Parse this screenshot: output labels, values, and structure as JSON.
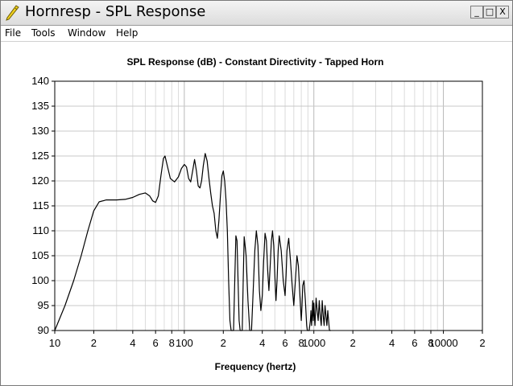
{
  "window": {
    "title": "Hornresp - SPL Response",
    "controls": {
      "minimize": "_",
      "maximize": "□",
      "close": "X"
    }
  },
  "menu": {
    "items": [
      {
        "label": "File"
      },
      {
        "label": "Tools"
      },
      {
        "label": "Window"
      },
      {
        "label": "Help"
      }
    ]
  },
  "chart_data": {
    "type": "line",
    "title": "SPL Response (dB) - Constant Directivity - Tapped Horn",
    "xlabel": "Frequency (hertz)",
    "ylabel": "",
    "xscale": "log",
    "xlim": [
      10,
      20000
    ],
    "ylim": [
      90,
      140
    ],
    "grid": true,
    "y_ticks": [
      "140",
      "135",
      "130",
      "125",
      "120",
      "115",
      "110",
      "105",
      "100",
      "95",
      "90"
    ],
    "x_tick_labels": [
      {
        "value": 10,
        "label": "10"
      },
      {
        "value": 20,
        "label": "2"
      },
      {
        "value": 40,
        "label": "4"
      },
      {
        "value": 60,
        "label": "6"
      },
      {
        "value": 80,
        "label": "8"
      },
      {
        "value": 100,
        "label": "100"
      },
      {
        "value": 200,
        "label": "2"
      },
      {
        "value": 400,
        "label": "4"
      },
      {
        "value": 600,
        "label": "6"
      },
      {
        "value": 800,
        "label": "8"
      },
      {
        "value": 1000,
        "label": "1000"
      },
      {
        "value": 2000,
        "label": "2"
      },
      {
        "value": 4000,
        "label": "4"
      },
      {
        "value": 6000,
        "label": "6"
      },
      {
        "value": 8000,
        "label": "8"
      },
      {
        "value": 10000,
        "label": "10000"
      },
      {
        "value": 20000,
        "label": "2"
      }
    ],
    "series": [
      {
        "color": "#000000",
        "points": [
          [
            10,
            90
          ],
          [
            12,
            95
          ],
          [
            14,
            100
          ],
          [
            16,
            105
          ],
          [
            18,
            110
          ],
          [
            20,
            114
          ],
          [
            22,
            115.8
          ],
          [
            25,
            116.2
          ],
          [
            30,
            116.2
          ],
          [
            35,
            116.3
          ],
          [
            40,
            116.7
          ],
          [
            45,
            117.3
          ],
          [
            50,
            117.6
          ],
          [
            54,
            117
          ],
          [
            57,
            116
          ],
          [
            60,
            115.7
          ],
          [
            63,
            117
          ],
          [
            66,
            121
          ],
          [
            69,
            124.5
          ],
          [
            71,
            125
          ],
          [
            74,
            123
          ],
          [
            78,
            120.5
          ],
          [
            84,
            119.8
          ],
          [
            90,
            120.8
          ],
          [
            95,
            122.5
          ],
          [
            100,
            123.3
          ],
          [
            104,
            122.8
          ],
          [
            108,
            120.5
          ],
          [
            112,
            119.8
          ],
          [
            116,
            122
          ],
          [
            120,
            124.3
          ],
          [
            124,
            122
          ],
          [
            128,
            119
          ],
          [
            132,
            118.6
          ],
          [
            136,
            120
          ],
          [
            140,
            123
          ],
          [
            145,
            125.5
          ],
          [
            150,
            124
          ],
          [
            155,
            120.5
          ],
          [
            160,
            117.5
          ],
          [
            165,
            115
          ],
          [
            170,
            113.5
          ],
          [
            175,
            110
          ],
          [
            180,
            108.5
          ],
          [
            185,
            112
          ],
          [
            190,
            117
          ],
          [
            195,
            121
          ],
          [
            200,
            122
          ],
          [
            205,
            120
          ],
          [
            210,
            116
          ],
          [
            215,
            110
          ],
          [
            220,
            100
          ],
          [
            225,
            92
          ],
          [
            230,
            90
          ],
          [
            240,
            90
          ],
          [
            245,
            100
          ],
          [
            250,
            109
          ],
          [
            255,
            108
          ],
          [
            260,
            100
          ],
          [
            265,
            92
          ],
          [
            270,
            90
          ],
          [
            280,
            90
          ],
          [
            285,
            100
          ],
          [
            290,
            108.8
          ],
          [
            300,
            105
          ],
          [
            310,
            96
          ],
          [
            320,
            90
          ],
          [
            330,
            90
          ],
          [
            340,
            98
          ],
          [
            350,
            106
          ],
          [
            360,
            110
          ],
          [
            370,
            107
          ],
          [
            380,
            98
          ],
          [
            390,
            94
          ],
          [
            400,
            97
          ],
          [
            410,
            104
          ],
          [
            420,
            109.5
          ],
          [
            430,
            108
          ],
          [
            440,
            102
          ],
          [
            450,
            98
          ],
          [
            460,
            103
          ],
          [
            470,
            108
          ],
          [
            480,
            110
          ],
          [
            490,
            107
          ],
          [
            500,
            101
          ],
          [
            510,
            96
          ],
          [
            520,
            100
          ],
          [
            530,
            106
          ],
          [
            540,
            109
          ],
          [
            560,
            106
          ],
          [
            580,
            100
          ],
          [
            600,
            97
          ],
          [
            610,
            101
          ],
          [
            620,
            106
          ],
          [
            640,
            108.5
          ],
          [
            660,
            104
          ],
          [
            680,
            99
          ],
          [
            700,
            95
          ],
          [
            720,
            100
          ],
          [
            740,
            105
          ],
          [
            760,
            103
          ],
          [
            780,
            97
          ],
          [
            800,
            92
          ],
          [
            810,
            95
          ],
          [
            820,
            99
          ],
          [
            840,
            100
          ],
          [
            860,
            96
          ],
          [
            880,
            91
          ],
          [
            890,
            90
          ],
          [
            920,
            90
          ],
          [
            940,
            92
          ],
          [
            950,
            94
          ],
          [
            960,
            91
          ],
          [
            970,
            93
          ],
          [
            980,
            96
          ],
          [
            990,
            92
          ],
          [
            1000,
            95.5
          ],
          [
            1010,
            93
          ],
          [
            1020,
            91
          ],
          [
            1040,
            96.5
          ],
          [
            1060,
            94
          ],
          [
            1080,
            92
          ],
          [
            1100,
            96
          ],
          [
            1120,
            93
          ],
          [
            1140,
            91
          ],
          [
            1160,
            96
          ],
          [
            1180,
            93
          ],
          [
            1200,
            91
          ],
          [
            1220,
            95
          ],
          [
            1240,
            93
          ],
          [
            1260,
            91
          ],
          [
            1280,
            94
          ],
          [
            1300,
            92
          ],
          [
            1320,
            90
          ],
          [
            1350,
            90
          ]
        ]
      }
    ]
  }
}
